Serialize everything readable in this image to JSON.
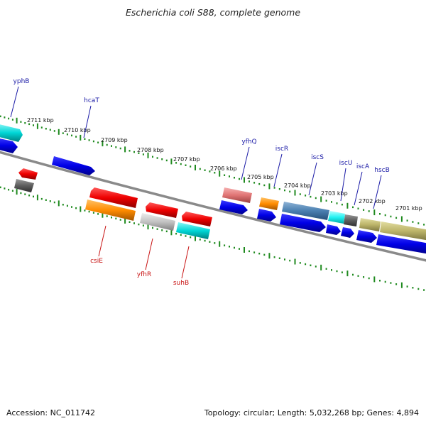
{
  "title": "Escherichia coli S88, complete genome",
  "footer": {
    "accession": "Accession: NC_011742",
    "topology": "Topology: circular; Length: 5,032,268 bp; Genes: 4,894"
  },
  "kbp_labels": [
    "2711 kbp",
    "2710 kbp",
    "2709 kbp",
    "2708 kbp",
    "2707 kbp",
    "2706 kbp",
    "2705 kbp",
    "2704 kbp",
    "2703 kbp",
    "2702 kbp",
    "2701 kbp"
  ],
  "gene_labels_top": [
    "yphB",
    "hcaT",
    "yfhQ",
    "iscR",
    "iscS",
    "iscU",
    "iscA",
    "hscB"
  ],
  "gene_labels_bottom": [
    "csiE",
    "yfhR",
    "suhB"
  ],
  "colors": {
    "top_label": "#1a1aa6",
    "bottom_label": "#c81414",
    "tick": "#1f8a1f",
    "backbone": "#8a8a8a"
  }
}
